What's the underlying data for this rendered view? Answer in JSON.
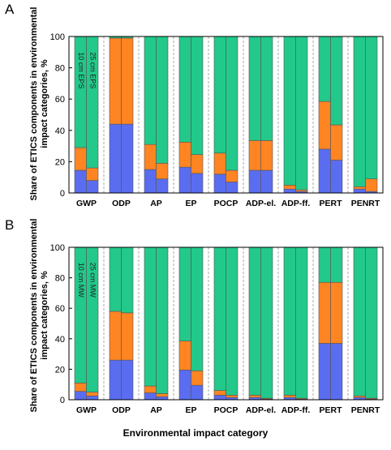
{
  "figure": {
    "xlabel": "Environmental impact category",
    "colors": {
      "bottom": "#5a6df0",
      "middle": "#ff8522",
      "top": "#22c98a",
      "divider": "#aaaaaa"
    }
  },
  "chart_data": [
    {
      "type": "bar",
      "stacked": true,
      "panel_label": "A",
      "ylabel": "Share of ETICS components in environmental impact categories, %",
      "ylim": [
        0,
        100
      ],
      "yticks": [
        0,
        20,
        40,
        60,
        80,
        100
      ],
      "categories": [
        "GWP",
        "ODP",
        "AP",
        "EP",
        "POCP",
        "ADP-el.",
        "ADP-ff.",
        "PERT",
        "PENRT"
      ],
      "bar_labels": [
        "10 cm EPS",
        "25 cm EPS"
      ],
      "bars": [
        {
          "category": "GWP",
          "variant": "10 cm EPS",
          "stack": [
            14.5,
            14.5,
            71
          ]
        },
        {
          "category": "GWP",
          "variant": "25 cm EPS",
          "stack": [
            8,
            8,
            84
          ]
        },
        {
          "category": "ODP",
          "variant": "10 cm EPS",
          "stack": [
            44,
            55,
            1
          ]
        },
        {
          "category": "ODP",
          "variant": "25 cm EPS",
          "stack": [
            44,
            55,
            1
          ]
        },
        {
          "category": "AP",
          "variant": "10 cm EPS",
          "stack": [
            15,
            16,
            69
          ]
        },
        {
          "category": "AP",
          "variant": "25 cm EPS",
          "stack": [
            9,
            10,
            81
          ]
        },
        {
          "category": "EP",
          "variant": "10 cm EPS",
          "stack": [
            16.5,
            16,
            67.5
          ]
        },
        {
          "category": "EP",
          "variant": "25 cm EPS",
          "stack": [
            12.5,
            12,
            75.5
          ]
        },
        {
          "category": "POCP",
          "variant": "10 cm EPS",
          "stack": [
            12,
            13.5,
            74.5
          ]
        },
        {
          "category": "POCP",
          "variant": "25 cm EPS",
          "stack": [
            7,
            7.5,
            85.5
          ]
        },
        {
          "category": "ADP-el.",
          "variant": "10 cm EPS",
          "stack": [
            14.5,
            19,
            66.5
          ]
        },
        {
          "category": "ADP-el.",
          "variant": "25 cm EPS",
          "stack": [
            14.5,
            19,
            66.5
          ]
        },
        {
          "category": "ADP-ff.",
          "variant": "10 cm EPS",
          "stack": [
            2.5,
            2.5,
            95
          ]
        },
        {
          "category": "ADP-ff.",
          "variant": "25 cm EPS",
          "stack": [
            1,
            1,
            98
          ]
        },
        {
          "category": "PERT",
          "variant": "10 cm EPS",
          "stack": [
            28,
            30.5,
            41.5
          ]
        },
        {
          "category": "PERT",
          "variant": "25 cm EPS",
          "stack": [
            21,
            22.5,
            56.5
          ]
        },
        {
          "category": "PENRT",
          "variant": "10 cm EPS",
          "stack": [
            2.5,
            1.5,
            96
          ]
        },
        {
          "category": "PENRT",
          "variant": "25 cm EPS",
          "stack": [
            1,
            8,
            91
          ]
        }
      ]
    },
    {
      "type": "bar",
      "stacked": true,
      "panel_label": "B",
      "ylabel": "Share of ETICS components in environmental impact categories, %",
      "ylim": [
        0,
        100
      ],
      "yticks": [
        0,
        20,
        40,
        60,
        80,
        100
      ],
      "categories": [
        "GWP",
        "ODP",
        "AP",
        "EP",
        "POCP",
        "ADP-el.",
        "ADP-ff.",
        "PERT",
        "PENRT"
      ],
      "bar_labels": [
        "10 cm MW",
        "25 cm MW"
      ],
      "bars": [
        {
          "category": "GWP",
          "variant": "10 cm MW",
          "stack": [
            5.5,
            5.5,
            89
          ]
        },
        {
          "category": "GWP",
          "variant": "25 cm MW",
          "stack": [
            2.5,
            2.5,
            95
          ]
        },
        {
          "category": "ODP",
          "variant": "10 cm MW",
          "stack": [
            26,
            32,
            42
          ]
        },
        {
          "category": "ODP",
          "variant": "25 cm MW",
          "stack": [
            26,
            31,
            43
          ]
        },
        {
          "category": "AP",
          "variant": "10 cm MW",
          "stack": [
            4.5,
            4.5,
            91
          ]
        },
        {
          "category": "AP",
          "variant": "25 cm MW",
          "stack": [
            2,
            2,
            96
          ]
        },
        {
          "category": "EP",
          "variant": "10 cm MW",
          "stack": [
            19.5,
            19,
            61.5
          ]
        },
        {
          "category": "EP",
          "variant": "25 cm MW",
          "stack": [
            9.5,
            9.5,
            81
          ]
        },
        {
          "category": "POCP",
          "variant": "10 cm MW",
          "stack": [
            3,
            3,
            94
          ]
        },
        {
          "category": "POCP",
          "variant": "25 cm MW",
          "stack": [
            1.5,
            1.5,
            97
          ]
        },
        {
          "category": "ADP-el.",
          "variant": "10 cm MW",
          "stack": [
            1.5,
            1.5,
            97
          ]
        },
        {
          "category": "ADP-el.",
          "variant": "25 cm MW",
          "stack": [
            0.5,
            0.5,
            99
          ]
        },
        {
          "category": "ADP-ff.",
          "variant": "10 cm MW",
          "stack": [
            1.5,
            1.5,
            97
          ]
        },
        {
          "category": "ADP-ff.",
          "variant": "25 cm MW",
          "stack": [
            0.5,
            0.5,
            99
          ]
        },
        {
          "category": "PERT",
          "variant": "10 cm MW",
          "stack": [
            37,
            40,
            23
          ]
        },
        {
          "category": "PERT",
          "variant": "25 cm MW",
          "stack": [
            37,
            40,
            23
          ]
        },
        {
          "category": "PENRT",
          "variant": "10 cm MW",
          "stack": [
            1.5,
            1,
            97.5
          ]
        },
        {
          "category": "PENRT",
          "variant": "25 cm MW",
          "stack": [
            0.5,
            0.5,
            99
          ]
        }
      ]
    }
  ]
}
